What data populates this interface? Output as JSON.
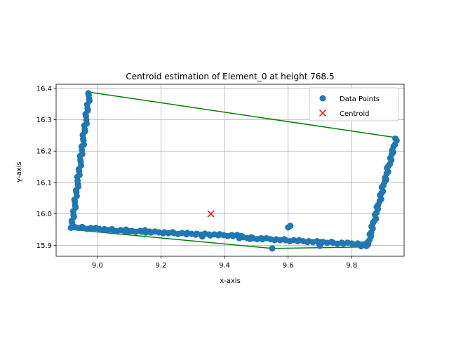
{
  "chart_data": {
    "type": "scatter",
    "title": "Centroid estimation of Element_0 at height 768.5",
    "xlabel": "x-axis",
    "ylabel": "y-axis",
    "xlim": [
      8.87,
      9.965
    ],
    "ylim": [
      15.865,
      16.413
    ],
    "x_ticks": [
      9.0,
      9.2,
      9.4,
      9.6,
      9.8
    ],
    "y_ticks": [
      15.9,
      16.0,
      16.1,
      16.2,
      16.3,
      16.4
    ],
    "grid": true,
    "legend_position": "top-right",
    "colors": {
      "points": "#1f77b4",
      "centroid": "#ff0000",
      "hull": "#008000",
      "grid": "#b0b0b0"
    },
    "series": [
      {
        "name": "Data Points",
        "marker": "circle",
        "segments": [
          {
            "from": [
              8.975,
              16.387
            ],
            "to": [
              8.92,
              15.96
            ],
            "count": 45
          },
          {
            "from": [
              8.92,
              15.958
            ],
            "to": [
              9.1,
              15.945
            ],
            "count": 20
          },
          {
            "from": [
              9.1,
              15.945
            ],
            "to": [
              9.45,
              15.93
            ],
            "count": 35
          },
          {
            "from": [
              9.45,
              15.925
            ],
            "to": [
              9.7,
              15.91
            ],
            "count": 25
          },
          {
            "from": [
              9.7,
              15.91
            ],
            "to": [
              9.855,
              15.903
            ],
            "count": 15
          },
          {
            "from": [
              9.85,
              15.9
            ],
            "to": [
              9.94,
              16.24
            ],
            "count": 40
          }
        ],
        "extra_points": [
          [
            9.6,
            15.957
          ],
          [
            9.607,
            15.962
          ],
          [
            9.55,
            15.89
          ],
          [
            9.7,
            15.898
          ],
          [
            9.83,
            15.897
          ],
          [
            9.09,
            15.95
          ],
          [
            9.15,
            15.948
          ],
          [
            9.28,
            15.935
          ],
          [
            9.48,
            15.92
          ],
          [
            9.33,
            15.928
          ]
        ]
      },
      {
        "name": "Centroid",
        "marker": "x",
        "points": [
          [
            9.357,
            16.0
          ]
        ]
      }
    ],
    "hull": [
      [
        8.98,
        16.387
      ],
      [
        9.94,
        16.243
      ],
      [
        9.855,
        15.895
      ],
      [
        9.55,
        15.89
      ],
      [
        8.92,
        15.95
      ],
      [
        8.98,
        16.387
      ]
    ]
  }
}
